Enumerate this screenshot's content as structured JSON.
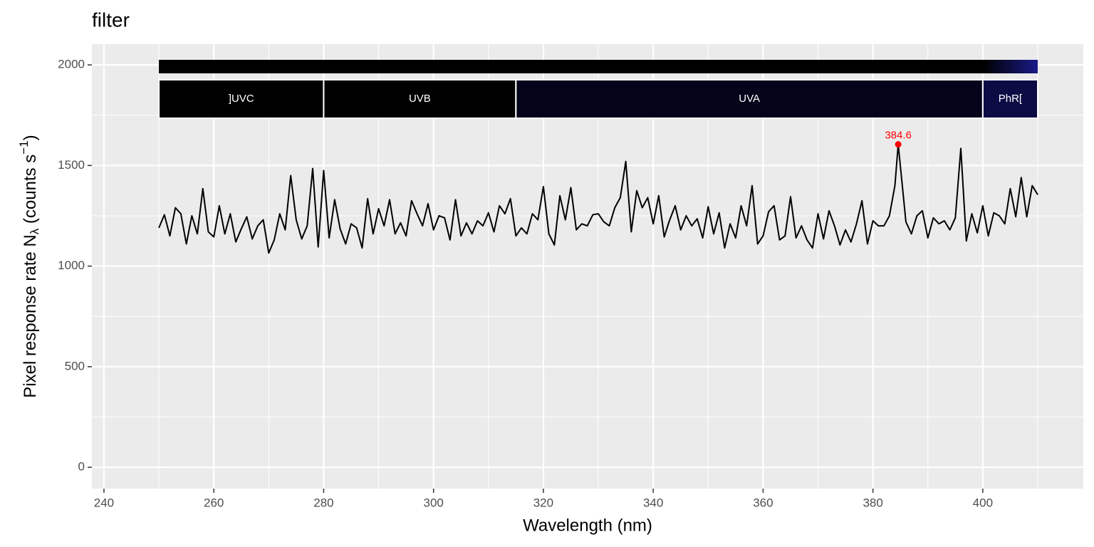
{
  "chart_data": {
    "type": "line",
    "title": "filter",
    "x_label": "Wavelength (nm)",
    "y_label": {
      "main": "Pixel  response  rate  N",
      "sub": "λ",
      "unit": "  (counts  s",
      "sup": "−1",
      "close": ")"
    },
    "xlim": [
      237.8,
      418.3
    ],
    "ylim": [
      -106,
      2103
    ],
    "xticks": [
      240,
      260,
      280,
      300,
      320,
      340,
      360,
      380,
      400
    ],
    "yticks": [
      0,
      500,
      1000,
      1500,
      2000
    ],
    "xminor": [
      250,
      270,
      290,
      310,
      330,
      350,
      370,
      390,
      410
    ],
    "yminor": [
      250,
      750,
      1250,
      1750
    ],
    "grid": true,
    "color": "#000000",
    "x": [
      250,
      251,
      252,
      253,
      254,
      255,
      256,
      257,
      258,
      259,
      260,
      261,
      262,
      263,
      264,
      265,
      266,
      267,
      268,
      269,
      270,
      271,
      272,
      273,
      274,
      275,
      276,
      277,
      278,
      279,
      280,
      281,
      282,
      283,
      284,
      285,
      286,
      287,
      288,
      289,
      290,
      291,
      292,
      293,
      294,
      295,
      296,
      297,
      298,
      299,
      300,
      301,
      302,
      303,
      304,
      305,
      306,
      307,
      308,
      309,
      310,
      311,
      312,
      313,
      314,
      315,
      316,
      317,
      318,
      319,
      320,
      321,
      322,
      323,
      324,
      325,
      326,
      327,
      328,
      329,
      330,
      331,
      332,
      333,
      334,
      335,
      336,
      337,
      338,
      339,
      340,
      341,
      342,
      343,
      344,
      345,
      346,
      347,
      348,
      349,
      350,
      351,
      352,
      353,
      354,
      355,
      356,
      357,
      358,
      359,
      360,
      361,
      362,
      363,
      364,
      365,
      366,
      367,
      368,
      369,
      370,
      371,
      372,
      373,
      374,
      375,
      376,
      377,
      378,
      379,
      380,
      381,
      382,
      383,
      384,
      384.6,
      386,
      387,
      388,
      389,
      390,
      391,
      392,
      393,
      394,
      395,
      396,
      397,
      398,
      399,
      400,
      401,
      402,
      403,
      404,
      405,
      406,
      407,
      408,
      409,
      410
    ],
    "values": [
      1190,
      1255,
      1150,
      1290,
      1260,
      1110,
      1250,
      1160,
      1385,
      1170,
      1145,
      1300,
      1160,
      1260,
      1120,
      1185,
      1245,
      1135,
      1200,
      1230,
      1065,
      1130,
      1260,
      1180,
      1450,
      1230,
      1135,
      1200,
      1485,
      1095,
      1475,
      1140,
      1330,
      1185,
      1110,
      1210,
      1190,
      1090,
      1335,
      1160,
      1285,
      1200,
      1330,
      1160,
      1215,
      1150,
      1325,
      1260,
      1200,
      1310,
      1180,
      1250,
      1240,
      1130,
      1330,
      1150,
      1215,
      1160,
      1225,
      1200,
      1265,
      1170,
      1300,
      1260,
      1335,
      1150,
      1190,
      1160,
      1260,
      1230,
      1395,
      1160,
      1105,
      1350,
      1230,
      1390,
      1180,
      1210,
      1200,
      1255,
      1260,
      1220,
      1200,
      1290,
      1340,
      1520,
      1170,
      1375,
      1290,
      1340,
      1210,
      1350,
      1145,
      1230,
      1300,
      1180,
      1250,
      1200,
      1235,
      1140,
      1295,
      1160,
      1265,
      1090,
      1210,
      1140,
      1300,
      1200,
      1400,
      1110,
      1150,
      1270,
      1300,
      1130,
      1150,
      1345,
      1140,
      1200,
      1130,
      1090,
      1260,
      1135,
      1275,
      1200,
      1105,
      1180,
      1120,
      1210,
      1325,
      1110,
      1225,
      1200,
      1200,
      1250,
      1400,
      1605,
      1220,
      1160,
      1250,
      1275,
      1140,
      1240,
      1210,
      1225,
      1180,
      1240,
      1585,
      1125,
      1260,
      1165,
      1300,
      1150,
      1265,
      1250,
      1210,
      1385,
      1245,
      1440,
      1245,
      1400,
      1355
    ],
    "peak": {
      "x": 384.6,
      "y": 1605,
      "color": "#ff0000"
    },
    "bands": [
      {
        "name": "]UVC",
        "from": 250,
        "to": 280,
        "color": "#000000"
      },
      {
        "name": "UVB",
        "from": 280,
        "to": 315,
        "color": "#000000"
      },
      {
        "name": "UVA",
        "from": 315,
        "to": 400,
        "color": "#03031a"
      },
      {
        "name": "PhR[",
        "from": 400,
        "to": 410,
        "color": "#0c0c45"
      }
    ]
  }
}
